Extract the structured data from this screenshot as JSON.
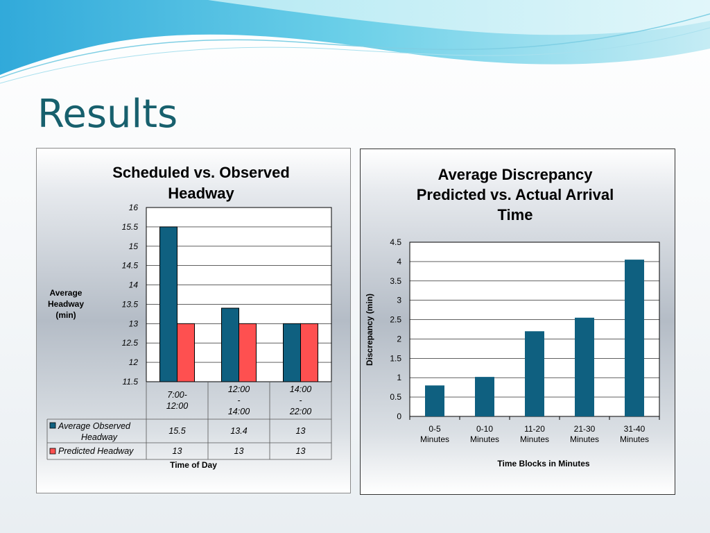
{
  "slide": {
    "title": "Results"
  },
  "chart_data": [
    {
      "type": "bar",
      "title": [
        "Scheduled vs. Observed",
        "Headway"
      ],
      "ylabel": [
        "Average",
        "Headway",
        "(min)"
      ],
      "xlabel": "Time of Day",
      "categories": [
        [
          "7:00-",
          "12:00"
        ],
        [
          "12:00",
          "-",
          "14:00"
        ],
        [
          "14:00",
          "-",
          "22:00"
        ]
      ],
      "ylim": [
        11.5,
        16
      ],
      "ytick_step": 0.5,
      "yticks": [
        "16",
        "15.5",
        "15",
        "14.5",
        "14",
        "13.5",
        "13",
        "12.5",
        "12",
        "11.5"
      ],
      "grid": true,
      "legend": "data-table",
      "series": [
        {
          "name": [
            "Average Observed",
            "Headway"
          ],
          "color": "#0f6080",
          "values": [
            15.5,
            13.4,
            13
          ],
          "labels": [
            "15.5",
            "13.4",
            "13"
          ]
        },
        {
          "name": [
            "Predicted Headway"
          ],
          "color": "#fe5050",
          "values": [
            13,
            13,
            13
          ],
          "labels": [
            "13",
            "13",
            "13"
          ]
        }
      ]
    },
    {
      "type": "bar",
      "title": [
        "Average Discrepancy",
        "Predicted vs. Actual Arrival",
        "Time"
      ],
      "ylabel": "Discrepancy (min)",
      "xlabel": "Time Blocks in Minutes",
      "categories": [
        [
          "0-5",
          "Minutes"
        ],
        [
          "0-10",
          "Minutes"
        ],
        [
          "11-20",
          "Minutes"
        ],
        [
          "21-30",
          "Minutes"
        ],
        [
          "31-40",
          "Minutes"
        ]
      ],
      "ylim": [
        0,
        4.5
      ],
      "ytick_step": 0.5,
      "yticks": [
        "4.5",
        "4",
        "3.5",
        "3",
        "2.5",
        "2",
        "1.5",
        "1",
        "0.5",
        "0"
      ],
      "grid": true,
      "legend": "none",
      "color": "#0f6080",
      "values": [
        0.8,
        1.02,
        2.2,
        2.55,
        4.05
      ]
    }
  ]
}
